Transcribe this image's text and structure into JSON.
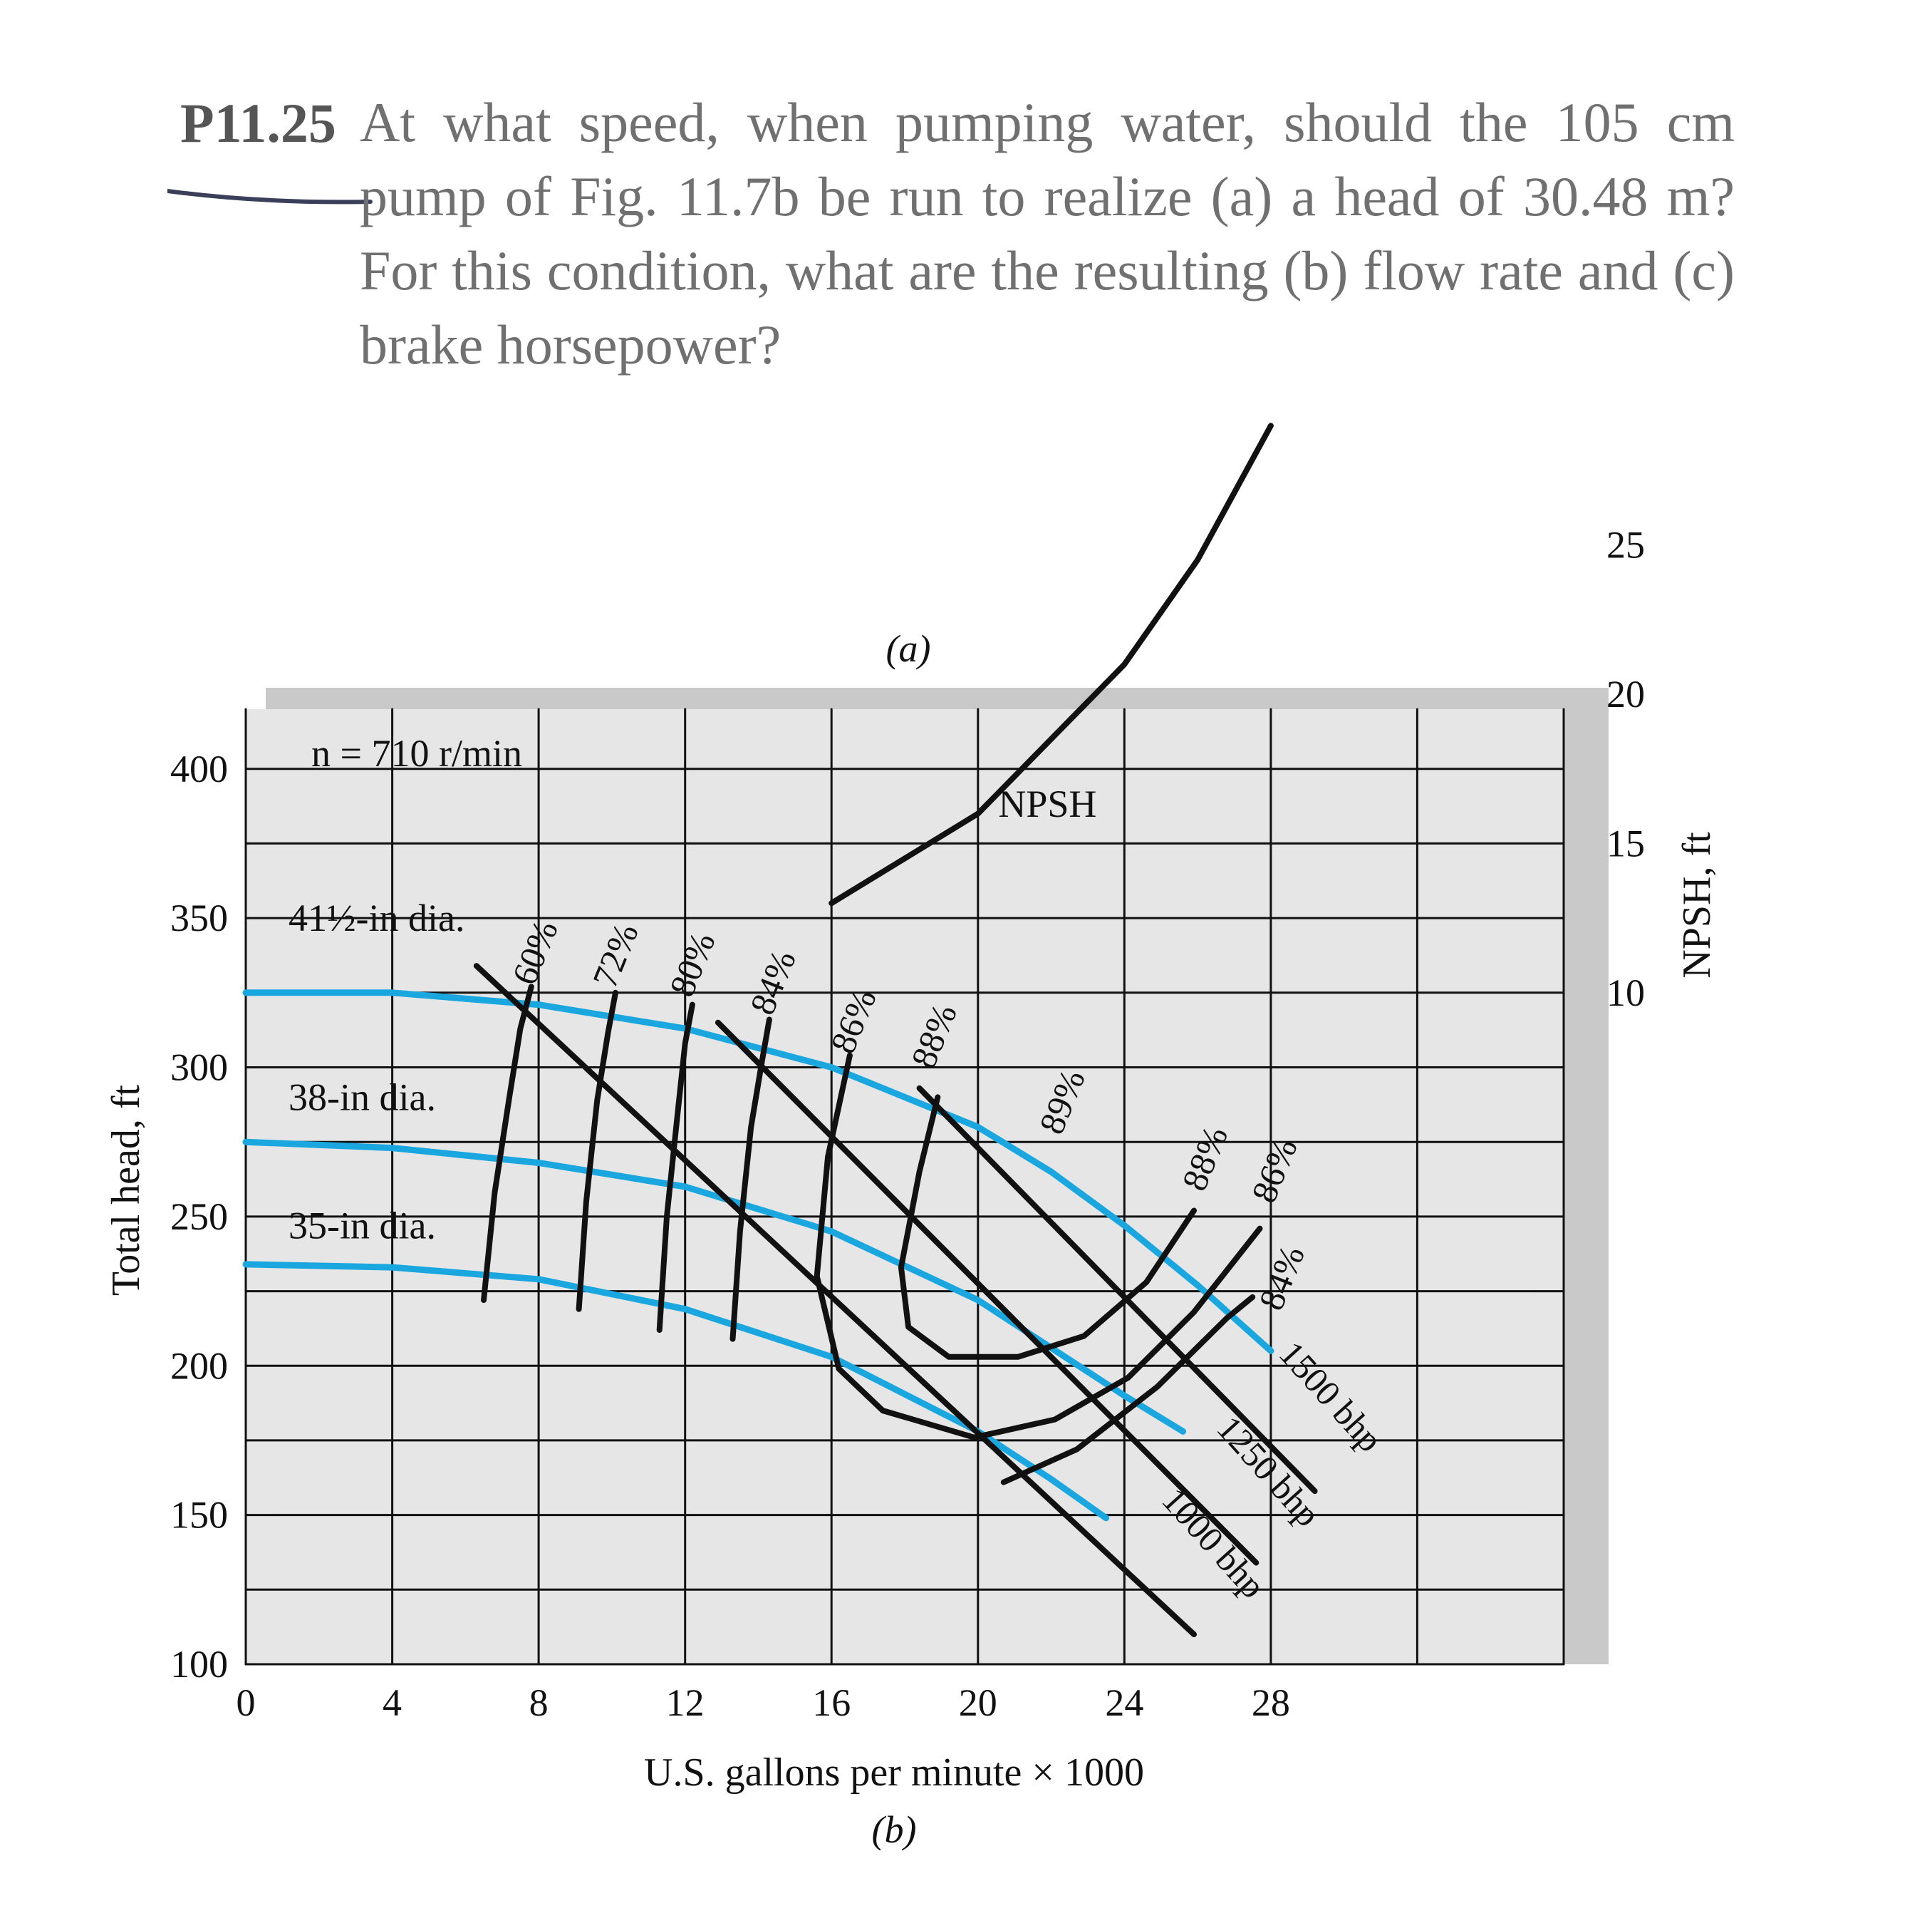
{
  "problem": {
    "number": "P11.25",
    "text": "At what speed, when pumping water, should the 105 cm pump of Fig. 11.7b be run to realize (a) a head of 30.48 m? For this condition, what are the resulting (b) flow rate and (c) brake horsepower?"
  },
  "colors": {
    "impeller_curves": "#1aa7e0",
    "lines": "#111111",
    "plot_background": "#e6e6e6",
    "shadow": "#c9c9c9",
    "problem_text": "#707070"
  },
  "chart_data": {
    "type": "line",
    "caption_top": "(a)",
    "caption_bottom": "(b)",
    "speed_label": "n = 710 r/min",
    "xlabel": "U.S. gallons per minute × 1000",
    "ylabel": "Total head, ft",
    "y2label": "NPSH, ft",
    "xlim": [
      0,
      36
    ],
    "ylim": [
      100,
      420
    ],
    "xticks": [
      0,
      4,
      8,
      12,
      16,
      20,
      24,
      28
    ],
    "yticks": [
      100,
      150,
      200,
      250,
      300,
      350,
      400
    ],
    "y2ticks": [
      10,
      15,
      20,
      25
    ],
    "grid": true,
    "impeller_curves": [
      {
        "name": "41½-in dia.",
        "label_head": 350,
        "x": [
          0,
          4,
          8,
          12,
          16,
          20,
          22,
          24,
          26,
          28
        ],
        "y": [
          325,
          325,
          321,
          313,
          300,
          280,
          265,
          247,
          227,
          205
        ]
      },
      {
        "name": "38-in dia.",
        "label_head": 290,
        "x": [
          0,
          4,
          8,
          12,
          16,
          20,
          22,
          24,
          25.6
        ],
        "y": [
          275,
          273,
          268,
          260,
          245,
          222,
          206,
          190,
          178
        ]
      },
      {
        "name": "35-in dia.",
        "label_head": 247,
        "x": [
          0,
          4,
          8,
          12,
          16,
          20,
          22,
          23.5
        ],
        "y": [
          234,
          233,
          229,
          219,
          203,
          178,
          162,
          149
        ]
      }
    ],
    "efficiency_curves": [
      {
        "name": "60%",
        "x": [
          6.5,
          6.8,
          7.2,
          7.5,
          7.8
        ],
        "y": [
          222,
          258,
          290,
          313,
          327
        ]
      },
      {
        "name": "72%",
        "x": [
          9.1,
          9.3,
          9.6,
          9.9,
          10.1
        ],
        "y": [
          219,
          255,
          289,
          312,
          325
        ]
      },
      {
        "name": "80%",
        "x": [
          11.3,
          11.5,
          11.8,
          12.0,
          12.2
        ],
        "y": [
          212,
          250,
          285,
          308,
          321
        ]
      },
      {
        "name": "84%",
        "x": [
          13.3,
          13.5,
          13.8,
          14.1,
          14.3
        ],
        "y": [
          209,
          245,
          280,
          302,
          316
        ]
      },
      {
        "name": "86%",
        "x": [
          16.5,
          15.9,
          15.6,
          16.2,
          17.4,
          19.9,
          22.1,
          24.1,
          25.9,
          27.7
        ],
        "y": [
          304,
          270,
          230,
          199,
          185,
          176,
          182,
          196,
          218,
          246
        ]
      },
      {
        "name": "88%",
        "x": [
          18.9,
          18.4,
          17.9,
          18.1,
          19.2,
          21.1,
          22.9,
          24.6,
          25.9
        ],
        "y": [
          290,
          265,
          233,
          213,
          203,
          203,
          210,
          228,
          252
        ]
      },
      {
        "name": "84%",
        "x": [
          20.7,
          22.7,
          24.9,
          26.8,
          27.5
        ],
        "y": [
          161,
          172,
          193,
          216,
          223
        ]
      }
    ],
    "efficiency_labels": [
      {
        "text": "60%",
        "x": 8.2,
        "y": 337
      },
      {
        "text": "72%",
        "x": 10.4,
        "y": 336
      },
      {
        "text": "80%",
        "x": 12.5,
        "y": 333
      },
      {
        "text": "84%",
        "x": 14.7,
        "y": 327
      },
      {
        "text": "86%",
        "x": 16.9,
        "y": 314
      },
      {
        "text": "88%",
        "x": 19.1,
        "y": 309
      },
      {
        "text": "89%",
        "x": 22.6,
        "y": 287
      },
      {
        "text": "88%",
        "x": 26.5,
        "y": 268
      },
      {
        "text": "86%",
        "x": 28.4,
        "y": 264
      },
      {
        "text": "84%",
        "x": 28.6,
        "y": 228
      }
    ],
    "bhp_lines": [
      {
        "name": "1000 bhp",
        "x": [
          6.3,
          25.9
        ],
        "y": [
          334,
          110
        ]
      },
      {
        "name": "1250 bhp",
        "x": [
          12.9,
          27.6
        ],
        "y": [
          315,
          134
        ]
      },
      {
        "name": "1500 bhp",
        "x": [
          18.4,
          29.2
        ],
        "y": [
          293,
          158
        ]
      }
    ],
    "bhp_labels": [
      {
        "text": "1000 bhp",
        "x": 26.2,
        "y": 138
      },
      {
        "text": "1250 bhp",
        "x": 27.7,
        "y": 162
      },
      {
        "text": "1500 bhp",
        "x": 29.4,
        "y": 187
      }
    ],
    "npsh_curve": {
      "name": "NPSH",
      "label_x": 21.9,
      "label_head": 384,
      "x": [
        16,
        20,
        24,
        26,
        28
      ],
      "npsh": [
        13,
        16,
        21,
        24.5,
        29
      ]
    }
  }
}
